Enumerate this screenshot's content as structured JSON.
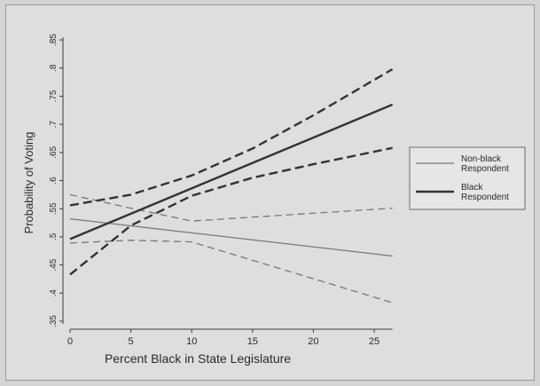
{
  "chart_data": {
    "type": "line",
    "title": "",
    "xlabel": "Percent Black in State Legislature",
    "ylabel": "Probability of Voting",
    "xlim": [
      0,
      27
    ],
    "ylim": [
      0.345,
      0.855
    ],
    "x_ticks": [
      0,
      5,
      10,
      15,
      20,
      25
    ],
    "x_tick_labels": [
      "0",
      "5",
      "10",
      "15",
      "20",
      "25"
    ],
    "y_ticks": [
      0.35,
      0.4,
      0.45,
      0.5,
      0.55,
      0.6,
      0.65,
      0.7,
      0.75,
      0.8,
      0.85
    ],
    "y_tick_labels": [
      ".35",
      ".4",
      ".45",
      ".5",
      ".55",
      ".6",
      ".65",
      ".7",
      ".75",
      ".8",
      ".85"
    ],
    "grid": false,
    "legend_position": "right",
    "legend": [
      {
        "label_lines": [
          "Non-black",
          "Respondent"
        ],
        "color": "#777777",
        "width": "thin"
      },
      {
        "label_lines": [
          "Black",
          "Respondent"
        ],
        "color": "#333333",
        "width": "thick"
      }
    ],
    "series": [
      {
        "name": "Non-black Respondent",
        "x": [
          0,
          26.5
        ],
        "y": [
          0.532,
          0.466
        ],
        "style": "solid",
        "color": "#777777",
        "weight": "thin"
      },
      {
        "name": "",
        "x": [
          0,
          5,
          10,
          26.5
        ],
        "y": [
          0.489,
          0.494,
          0.491,
          0.383
        ],
        "style": "dashed",
        "color": "#777777",
        "weight": "thin"
      },
      {
        "name": "",
        "x": [
          0,
          5,
          10,
          26.5
        ],
        "y": [
          0.575,
          0.551,
          0.528,
          0.551
        ],
        "style": "dashed",
        "color": "#777777",
        "weight": "thin"
      },
      {
        "name": "Black Respondent",
        "x": [
          0,
          26.5
        ],
        "y": [
          0.496,
          0.735
        ],
        "style": "solid",
        "color": "#333333",
        "weight": "thick"
      },
      {
        "name": "",
        "x": [
          0,
          5,
          10,
          15,
          20,
          26.5
        ],
        "y": [
          0.556,
          0.575,
          0.609,
          0.657,
          0.716,
          0.798
        ],
        "style": "dashed",
        "color": "#333333",
        "weight": "thick"
      },
      {
        "name": "",
        "x": [
          0,
          5,
          10,
          15,
          20,
          26.5
        ],
        "y": [
          0.433,
          0.52,
          0.573,
          0.605,
          0.629,
          0.658
        ],
        "style": "dashed",
        "color": "#333333",
        "weight": "thick"
      }
    ]
  }
}
